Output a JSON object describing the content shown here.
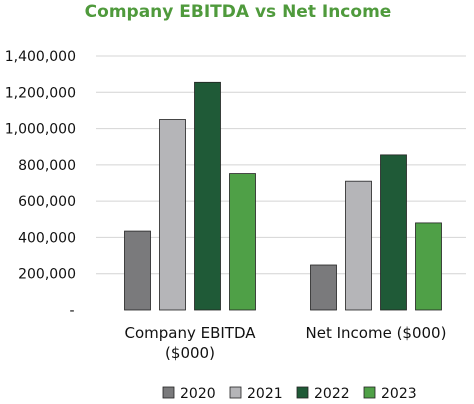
{
  "chart_data": {
    "type": "bar",
    "title": "Company EBITDA vs Net Income",
    "categories": [
      [
        "Company EBITDA",
        "($000)"
      ],
      [
        "Net Income ($000)"
      ]
    ],
    "series": [
      {
        "name": "2020",
        "values": [
          435000,
          248000
        ],
        "color": "#7a7a7c"
      },
      {
        "name": "2021",
        "values": [
          1050000,
          710000
        ],
        "color": "#b5b5b8"
      },
      {
        "name": "2022",
        "values": [
          1255000,
          855000
        ],
        "color": "#1f5a37"
      },
      {
        "name": "2023",
        "values": [
          752000,
          480000
        ],
        "color": "#4fa047"
      }
    ],
    "ylim": [
      0,
      1400000
    ],
    "yticks": [
      0,
      200000,
      400000,
      600000,
      800000,
      1000000,
      1200000,
      1400000
    ],
    "ytick_labels": [
      "-",
      "200,000",
      "400,000",
      "600,000",
      "800,000",
      "1,000,000",
      "1,200,000",
      "1,400,000"
    ],
    "grid": true,
    "legend_position": "bottom"
  }
}
